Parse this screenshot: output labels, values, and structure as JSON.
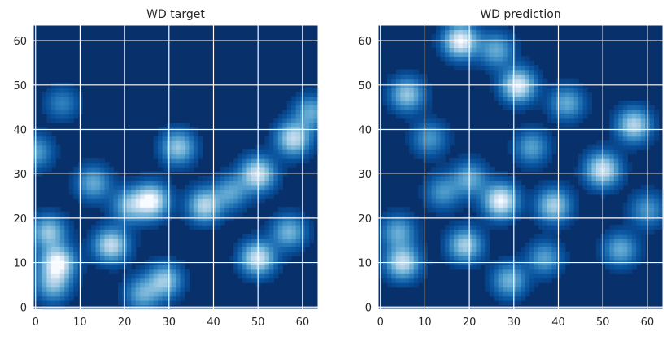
{
  "chart_data": [
    {
      "type": "heatmap",
      "title": "WD target",
      "xlabel": "",
      "ylabel": "",
      "xlim": [
        0,
        63
      ],
      "ylim": [
        0,
        63
      ],
      "xticks": [
        0,
        10,
        20,
        30,
        40,
        50,
        60
      ],
      "yticks": [
        0,
        10,
        20,
        30,
        40,
        50,
        60
      ],
      "grid": true,
      "colormap": [
        "#08306b",
        "#08519c",
        "#2171b5",
        "#4292c6",
        "#6baed6",
        "#9ecae1",
        "#c6dbef",
        "#f7fbff"
      ],
      "blobs": [
        {
          "x": 5,
          "y": 10,
          "intensity": 1.0
        },
        {
          "x": 3,
          "y": 17,
          "intensity": 0.7
        },
        {
          "x": 4,
          "y": 5,
          "intensity": 0.6
        },
        {
          "x": 17,
          "y": 14,
          "intensity": 0.85
        },
        {
          "x": 13,
          "y": 28,
          "intensity": 0.55
        },
        {
          "x": 21,
          "y": 23,
          "intensity": 0.6
        },
        {
          "x": 26,
          "y": 24,
          "intensity": 1.0
        },
        {
          "x": 38,
          "y": 23,
          "intensity": 0.8
        },
        {
          "x": 32,
          "y": 36,
          "intensity": 0.7
        },
        {
          "x": 44,
          "y": 26,
          "intensity": 0.5
        },
        {
          "x": 50,
          "y": 30,
          "intensity": 0.9
        },
        {
          "x": 58,
          "y": 38,
          "intensity": 0.85
        },
        {
          "x": 62,
          "y": 44,
          "intensity": 0.55
        },
        {
          "x": 50,
          "y": 11,
          "intensity": 0.9
        },
        {
          "x": 57,
          "y": 17,
          "intensity": 0.6
        },
        {
          "x": 29,
          "y": 6,
          "intensity": 0.7
        },
        {
          "x": 24,
          "y": 3,
          "intensity": 0.55
        },
        {
          "x": 0,
          "y": 35,
          "intensity": 0.5
        },
        {
          "x": 6,
          "y": 46,
          "intensity": 0.35
        }
      ]
    },
    {
      "type": "heatmap",
      "title": "WD prediction",
      "xlabel": "",
      "ylabel": "",
      "xlim": [
        0,
        63
      ],
      "ylim": [
        0,
        63
      ],
      "xticks": [
        0,
        10,
        20,
        30,
        40,
        50,
        60
      ],
      "yticks": [
        0,
        10,
        20,
        30,
        40,
        50,
        60
      ],
      "grid": true,
      "colormap": [
        "#08306b",
        "#08519c",
        "#2171b5",
        "#4292c6",
        "#6baed6",
        "#9ecae1",
        "#c6dbef",
        "#f7fbff"
      ],
      "blobs": [
        {
          "x": 18,
          "y": 60,
          "intensity": 1.0
        },
        {
          "x": 26,
          "y": 58,
          "intensity": 0.55
        },
        {
          "x": 31,
          "y": 50,
          "intensity": 0.95
        },
        {
          "x": 6,
          "y": 48,
          "intensity": 0.7
        },
        {
          "x": 42,
          "y": 46,
          "intensity": 0.55
        },
        {
          "x": 57,
          "y": 41,
          "intensity": 0.8
        },
        {
          "x": 50,
          "y": 31,
          "intensity": 0.9
        },
        {
          "x": 34,
          "y": 36,
          "intensity": 0.5
        },
        {
          "x": 27,
          "y": 24,
          "intensity": 1.0
        },
        {
          "x": 39,
          "y": 23,
          "intensity": 0.75
        },
        {
          "x": 20,
          "y": 29,
          "intensity": 0.55
        },
        {
          "x": 14,
          "y": 26,
          "intensity": 0.45
        },
        {
          "x": 19,
          "y": 14,
          "intensity": 0.75
        },
        {
          "x": 5,
          "y": 10,
          "intensity": 0.85
        },
        {
          "x": 4,
          "y": 17,
          "intensity": 0.55
        },
        {
          "x": 29,
          "y": 6,
          "intensity": 0.6
        },
        {
          "x": 37,
          "y": 11,
          "intensity": 0.5
        },
        {
          "x": 54,
          "y": 13,
          "intensity": 0.55
        },
        {
          "x": 60,
          "y": 22,
          "intensity": 0.45
        },
        {
          "x": 11,
          "y": 38,
          "intensity": 0.45
        }
      ]
    }
  ]
}
